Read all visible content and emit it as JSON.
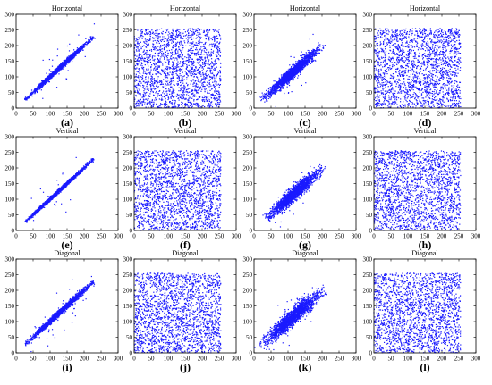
{
  "figure": {
    "panel_labels": [
      "(a)",
      "(b)",
      "(c)",
      "(d)",
      "(e)",
      "(f)",
      "(g)",
      "(h)",
      "(i)",
      "(j)",
      "(k)",
      "(l)"
    ],
    "colors": {
      "points": "#1a1aff",
      "axes": "#000000",
      "background": "#ffffff"
    }
  },
  "chart_data": [
    {
      "type": "scatter",
      "label": "(a)",
      "title": "Horizontal",
      "xlim": [
        0,
        300
      ],
      "ylim": [
        0,
        300
      ],
      "xticks": [
        0,
        50,
        100,
        150,
        200,
        250,
        300
      ],
      "yticks": [
        0,
        50,
        100,
        150,
        200,
        250,
        300
      ],
      "distribution": "correlated",
      "n_points": 2000,
      "x_range": [
        30,
        225
      ],
      "correlation": 0.97,
      "point_color": "#1a1aff"
    },
    {
      "type": "scatter",
      "label": "(b)",
      "title": "Horizontal",
      "xlim": [
        0,
        300
      ],
      "ylim": [
        0,
        300
      ],
      "xticks": [
        0,
        50,
        100,
        150,
        200,
        250,
        300
      ],
      "yticks": [
        0,
        50,
        100,
        150,
        200,
        250,
        300
      ],
      "distribution": "uniform",
      "n_points": 2000,
      "x_range": [
        0,
        255
      ],
      "y_range": [
        0,
        255
      ],
      "point_color": "#1a1aff"
    },
    {
      "type": "scatter",
      "label": "(c)",
      "title": "Horizontal",
      "xlim": [
        0,
        300
      ],
      "ylim": [
        0,
        300
      ],
      "xticks": [
        0,
        50,
        100,
        150,
        200,
        250,
        300
      ],
      "yticks": [
        0,
        50,
        100,
        150,
        200,
        250,
        300
      ],
      "distribution": "correlated",
      "n_points": 2000,
      "x_range": [
        30,
        195
      ],
      "correlation": 0.9,
      "point_color": "#1a1aff"
    },
    {
      "type": "scatter",
      "label": "(d)",
      "title": "Horizontal",
      "xlim": [
        0,
        300
      ],
      "ylim": [
        0,
        300
      ],
      "xticks": [
        0,
        50,
        100,
        150,
        200,
        250,
        300
      ],
      "yticks": [
        0,
        50,
        100,
        150,
        200,
        250,
        300
      ],
      "distribution": "uniform",
      "n_points": 2000,
      "x_range": [
        0,
        255
      ],
      "y_range": [
        0,
        255
      ],
      "point_color": "#1a1aff"
    },
    {
      "type": "scatter",
      "label": "(e)",
      "title": "Vertical",
      "xlim": [
        0,
        300
      ],
      "ylim": [
        0,
        300
      ],
      "xticks": [
        0,
        50,
        100,
        150,
        200,
        250,
        300
      ],
      "yticks": [
        0,
        50,
        100,
        150,
        200,
        250,
        300
      ],
      "distribution": "correlated",
      "n_points": 2000,
      "x_range": [
        30,
        225
      ],
      "correlation": 0.98,
      "point_color": "#1a1aff"
    },
    {
      "type": "scatter",
      "label": "(f)",
      "title": "Vertical",
      "xlim": [
        0,
        300
      ],
      "ylim": [
        0,
        300
      ],
      "xticks": [
        0,
        50,
        100,
        150,
        200,
        250,
        300
      ],
      "yticks": [
        0,
        50,
        100,
        150,
        200,
        250,
        300
      ],
      "distribution": "uniform",
      "n_points": 2000,
      "x_range": [
        0,
        255
      ],
      "y_range": [
        0,
        255
      ],
      "point_color": "#1a1aff"
    },
    {
      "type": "scatter",
      "label": "(g)",
      "title": "Vertical",
      "xlim": [
        0,
        300
      ],
      "ylim": [
        0,
        300
      ],
      "xticks": [
        0,
        50,
        100,
        150,
        200,
        250,
        300
      ],
      "yticks": [
        0,
        50,
        100,
        150,
        200,
        250,
        300
      ],
      "distribution": "correlated",
      "n_points": 2000,
      "x_range": [
        40,
        195
      ],
      "correlation": 0.88,
      "point_color": "#1a1aff"
    },
    {
      "type": "scatter",
      "label": "(h)",
      "title": "Vertical",
      "xlim": [
        0,
        300
      ],
      "ylim": [
        0,
        300
      ],
      "xticks": [
        0,
        50,
        100,
        150,
        200,
        250,
        300
      ],
      "yticks": [
        0,
        50,
        100,
        150,
        200,
        250,
        300
      ],
      "distribution": "uniform",
      "n_points": 2000,
      "x_range": [
        0,
        255
      ],
      "y_range": [
        0,
        255
      ],
      "point_color": "#1a1aff"
    },
    {
      "type": "scatter",
      "label": "(i)",
      "title": "Diagonal",
      "xlim": [
        0,
        300
      ],
      "ylim": [
        0,
        300
      ],
      "xticks": [
        0,
        50,
        100,
        150,
        200,
        250,
        300
      ],
      "yticks": [
        0,
        50,
        100,
        150,
        200,
        250,
        300
      ],
      "distribution": "correlated",
      "n_points": 2000,
      "x_range": [
        30,
        225
      ],
      "correlation": 0.96,
      "point_color": "#1a1aff"
    },
    {
      "type": "scatter",
      "label": "(j)",
      "title": "Diagonal",
      "xlim": [
        0,
        300
      ],
      "ylim": [
        0,
        300
      ],
      "xticks": [
        0,
        50,
        100,
        150,
        200,
        250,
        300
      ],
      "yticks": [
        0,
        50,
        100,
        150,
        200,
        250,
        300
      ],
      "distribution": "uniform",
      "n_points": 2000,
      "x_range": [
        0,
        255
      ],
      "y_range": [
        0,
        255
      ],
      "point_color": "#1a1aff"
    },
    {
      "type": "scatter",
      "label": "(k)",
      "title": "Diagonal",
      "xlim": [
        0,
        300
      ],
      "ylim": [
        0,
        300
      ],
      "xticks": [
        0,
        50,
        100,
        150,
        200,
        250,
        300
      ],
      "yticks": [
        0,
        50,
        100,
        150,
        200,
        250,
        300
      ],
      "distribution": "correlated",
      "n_points": 2000,
      "x_range": [
        30,
        195
      ],
      "correlation": 0.86,
      "point_color": "#1a1aff"
    },
    {
      "type": "scatter",
      "label": "(l)",
      "title": "Diagonal",
      "xlim": [
        0,
        300
      ],
      "ylim": [
        0,
        300
      ],
      "xticks": [
        0,
        50,
        100,
        150,
        200,
        250,
        300
      ],
      "yticks": [
        0,
        50,
        100,
        150,
        200,
        250,
        300
      ],
      "distribution": "uniform",
      "n_points": 2000,
      "x_range": [
        0,
        255
      ],
      "y_range": [
        0,
        255
      ],
      "point_color": "#1a1aff"
    }
  ]
}
